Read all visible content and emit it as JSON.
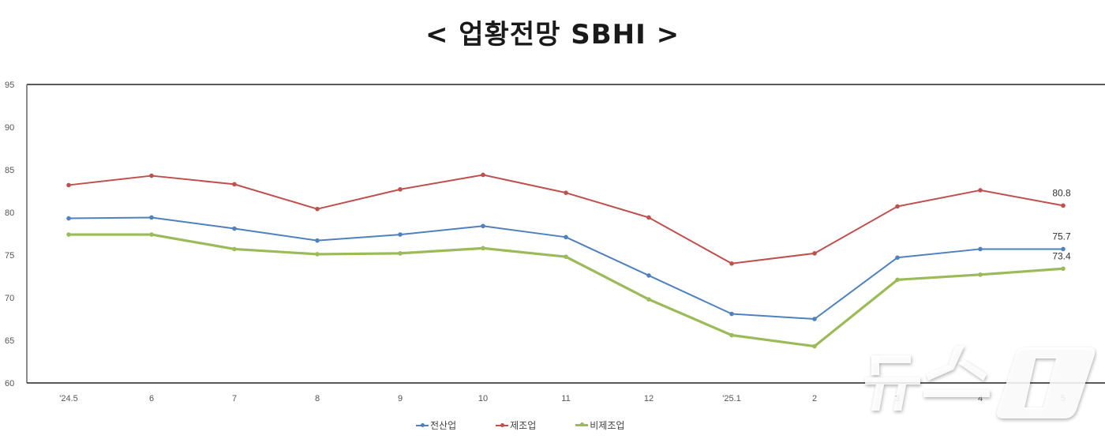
{
  "title": "< 업황전망 SBHI >",
  "legend": {
    "items": [
      {
        "label": "전산업",
        "color": "#4f81bd"
      },
      {
        "label": "제조업",
        "color": "#c0504d"
      },
      {
        "label": "비제조업",
        "color": "#9bbb59"
      }
    ]
  },
  "watermark": "뉴스1",
  "chart_data": {
    "type": "line",
    "title": "< 업황전망 SBHI >",
    "xlabel": "",
    "ylabel": "",
    "categories": [
      "'24.5",
      "6",
      "7",
      "8",
      "9",
      "10",
      "11",
      "12",
      "'25.1",
      "2",
      "3",
      "4",
      "5"
    ],
    "yticks": [
      60,
      65,
      70,
      75,
      80,
      85,
      90,
      95
    ],
    "ylim": [
      60,
      95
    ],
    "grid": false,
    "legend_position": "bottom",
    "series": [
      {
        "name": "전산업",
        "color": "#4f81bd",
        "values": [
          79.3,
          79.4,
          78.1,
          76.7,
          77.4,
          78.4,
          77.1,
          72.6,
          68.1,
          67.5,
          74.7,
          75.7,
          75.7
        ],
        "end_label": "75.7"
      },
      {
        "name": "제조업",
        "color": "#c0504d",
        "values": [
          83.2,
          84.3,
          83.3,
          80.4,
          82.7,
          84.4,
          82.3,
          79.4,
          74.0,
          75.2,
          80.7,
          82.6,
          80.8
        ],
        "end_label": "80.8"
      },
      {
        "name": "비제조업",
        "color": "#9bbb59",
        "values": [
          77.4,
          77.4,
          75.7,
          75.1,
          75.2,
          75.8,
          74.8,
          69.8,
          65.6,
          64.3,
          72.1,
          72.7,
          73.4
        ],
        "end_label": "73.4"
      }
    ]
  }
}
